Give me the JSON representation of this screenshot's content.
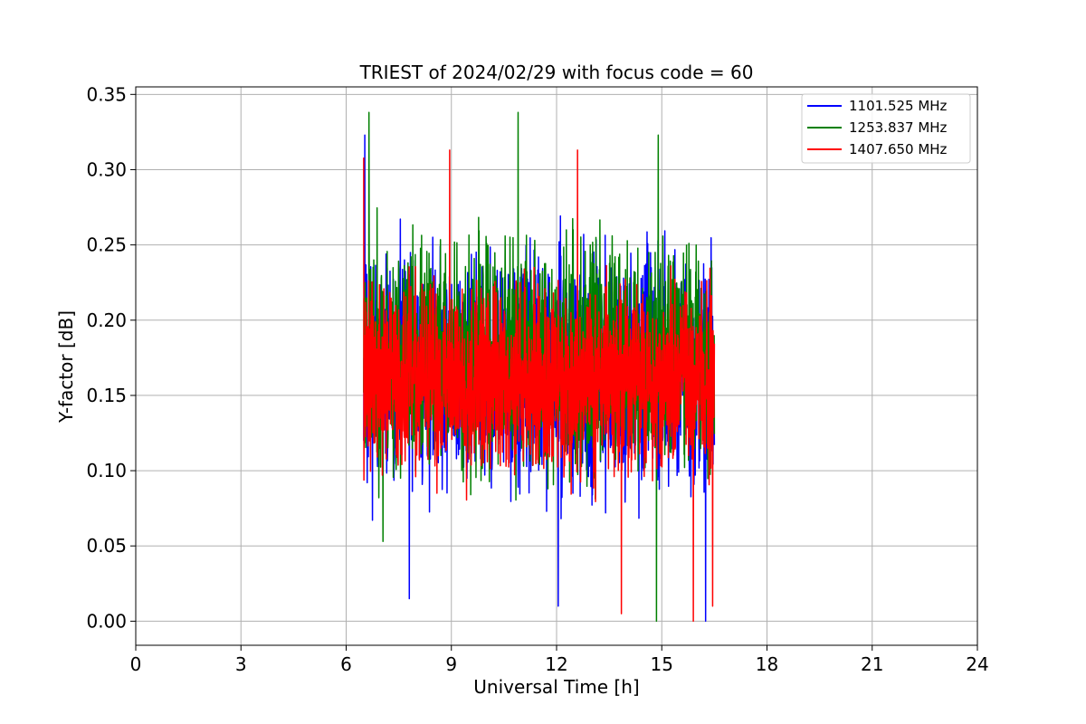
{
  "chart_data": {
    "type": "line",
    "title": "TRIEST of 2024/02/29 with focus code = 60",
    "xlabel": "Universal Time [h]",
    "ylabel": "Y-factor [dB]",
    "xlim": [
      0,
      24
    ],
    "ylim": [
      -0.016,
      0.355
    ],
    "xticks": [
      0,
      3,
      6,
      9,
      12,
      15,
      18,
      21,
      24
    ],
    "xtick_labels": [
      "0",
      "3",
      "6",
      "9",
      "12",
      "15",
      "18",
      "21",
      "24"
    ],
    "yticks": [
      0.0,
      0.05,
      0.1,
      0.15,
      0.2,
      0.25,
      0.3,
      0.35
    ],
    "ytick_labels": [
      "0.00",
      "0.05",
      "0.10",
      "0.15",
      "0.20",
      "0.25",
      "0.30",
      "0.35"
    ],
    "grid": true,
    "legend_position": "top-right",
    "time_range": [
      6.5,
      16.5
    ],
    "series": [
      {
        "name": "1101.525 MHz",
        "color": "#0000ff",
        "mean": 0.165,
        "spread": 0.055,
        "min": 0.0,
        "max": 0.323,
        "seed": 11,
        "spikes": [
          [
            6.53,
            0.323
          ],
          [
            7.8,
            0.015
          ],
          [
            12.05,
            0.01
          ],
          [
            16.25,
            0.0
          ],
          [
            6.6,
            0.092
          ]
        ]
      },
      {
        "name": "1253.837 MHz",
        "color": "#008000",
        "mean": 0.175,
        "spread": 0.055,
        "min": 0.0,
        "max": 0.338,
        "seed": 23,
        "spikes": [
          [
            6.65,
            0.338
          ],
          [
            10.9,
            0.338
          ],
          [
            14.85,
            0.0
          ],
          [
            14.9,
            0.323
          ],
          [
            7.05,
            0.053
          ]
        ]
      },
      {
        "name": "1407.650 MHz",
        "color": "#ff0000",
        "mean": 0.16,
        "spread": 0.045,
        "min": 0.0,
        "max": 0.313,
        "seed": 37,
        "spikes": [
          [
            6.5,
            0.308
          ],
          [
            8.95,
            0.313
          ],
          [
            12.6,
            0.313
          ],
          [
            13.85,
            0.005
          ],
          [
            15.9,
            0.0
          ],
          [
            16.45,
            0.01
          ]
        ]
      }
    ]
  }
}
